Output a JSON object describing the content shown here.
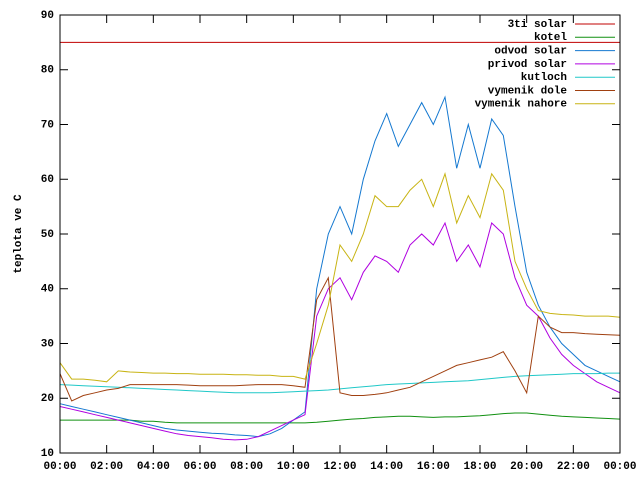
{
  "chart_data": {
    "type": "line",
    "ylabel": "teplota ve C",
    "x": [
      0,
      0.5,
      1,
      1.5,
      2,
      2.5,
      3,
      3.5,
      4,
      4.5,
      5,
      5.5,
      6,
      6.5,
      7,
      7.5,
      8,
      8.5,
      9,
      9.5,
      10,
      10.5,
      11,
      11.5,
      12,
      12.5,
      13,
      13.5,
      14,
      14.5,
      15,
      15.5,
      16,
      16.5,
      17,
      17.5,
      18,
      18.5,
      19,
      19.5,
      20,
      20.5,
      21,
      21.5,
      22,
      22.5,
      23,
      23.5,
      24
    ],
    "xlim": [
      0,
      24
    ],
    "xticks": [
      {
        "value": 0,
        "label": "00:00"
      },
      {
        "value": 2,
        "label": "02:00"
      },
      {
        "value": 4,
        "label": "04:00"
      },
      {
        "value": 6,
        "label": "06:00"
      },
      {
        "value": 8,
        "label": "08:00"
      },
      {
        "value": 10,
        "label": "10:00"
      },
      {
        "value": 12,
        "label": "12:00"
      },
      {
        "value": 14,
        "label": "14:00"
      },
      {
        "value": 16,
        "label": "16:00"
      },
      {
        "value": 18,
        "label": "18:00"
      },
      {
        "value": 20,
        "label": "20:00"
      },
      {
        "value": 22,
        "label": "22:00"
      },
      {
        "value": 24,
        "label": "00:00"
      }
    ],
    "ylim": [
      10,
      90
    ],
    "yticks": [
      10,
      20,
      30,
      40,
      50,
      60,
      70,
      80,
      90
    ],
    "legend": "top-right",
    "series": [
      {
        "name": "3ti solar",
        "color": "#c00000",
        "values": [
          85,
          85,
          85,
          85,
          85,
          85,
          85,
          85,
          85,
          85,
          85,
          85,
          85,
          85,
          85,
          85,
          85,
          85,
          85,
          85,
          85,
          85,
          85,
          85,
          85,
          85,
          85,
          85,
          85,
          85,
          85,
          85,
          85,
          85,
          85,
          85,
          85,
          85,
          85,
          85,
          85,
          85,
          85,
          85,
          85,
          85,
          85,
          85,
          85
        ]
      },
      {
        "name": "kotel",
        "color": "#109010",
        "values": [
          16,
          16,
          16,
          16,
          16,
          16,
          16,
          15.8,
          15.8,
          15.6,
          15.5,
          15.5,
          15.5,
          15.5,
          15.5,
          15.5,
          15.5,
          15.5,
          15.5,
          15.5,
          15.5,
          15.5,
          15.6,
          15.8,
          16,
          16.2,
          16.3,
          16.5,
          16.6,
          16.7,
          16.7,
          16.6,
          16.5,
          16.6,
          16.6,
          16.7,
          16.8,
          17,
          17.2,
          17.3,
          17.3,
          17.1,
          16.9,
          16.7,
          16.6,
          16.5,
          16.4,
          16.3,
          16.2
        ]
      },
      {
        "name": "odvod solar",
        "color": "#1478d0",
        "values": [
          19,
          18.5,
          18,
          17.5,
          17,
          16.5,
          16,
          15.5,
          15,
          14.5,
          14.2,
          14,
          13.8,
          13.6,
          13.5,
          13.3,
          13.2,
          13,
          13.5,
          14.5,
          16,
          17.5,
          40,
          50,
          55,
          50,
          60,
          67,
          72,
          66,
          70,
          74,
          70,
          75,
          62,
          70,
          62,
          71,
          68,
          55,
          43,
          37,
          33,
          30,
          28,
          26,
          25,
          24,
          23
        ]
      },
      {
        "name": "privod solar",
        "color": "#b000e0",
        "values": [
          18.5,
          18,
          17.5,
          17,
          16.5,
          16,
          15.5,
          15,
          14.5,
          14,
          13.5,
          13.2,
          13,
          12.8,
          12.5,
          12.4,
          12.5,
          13,
          14,
          15,
          16,
          17,
          35,
          40,
          42,
          38,
          43,
          46,
          45,
          43,
          48,
          50,
          48,
          52,
          45,
          48,
          44,
          52,
          50,
          42,
          37,
          35,
          31,
          28,
          26,
          24.5,
          23,
          22,
          21
        ]
      },
      {
        "name": "kutloch",
        "color": "#20c8c8",
        "values": [
          22.5,
          22.4,
          22.3,
          22.2,
          22.1,
          22,
          21.9,
          21.8,
          21.7,
          21.6,
          21.5,
          21.4,
          21.3,
          21.2,
          21.1,
          21,
          21,
          21,
          21,
          21.1,
          21.2,
          21.3,
          21.4,
          21.5,
          21.7,
          21.9,
          22.1,
          22.3,
          22.5,
          22.6,
          22.7,
          22.8,
          22.9,
          23,
          23.1,
          23.2,
          23.4,
          23.6,
          23.8,
          24,
          24.1,
          24.2,
          24.3,
          24.4,
          24.5,
          24.5,
          24.5,
          24.6,
          24.6
        ]
      },
      {
        "name": "vymenik dole",
        "color": "#a04010",
        "values": [
          24.5,
          19.5,
          20.5,
          21,
          21.5,
          21.8,
          22.5,
          22.5,
          22.5,
          22.5,
          22.5,
          22.4,
          22.3,
          22.3,
          22.3,
          22.3,
          22.4,
          22.5,
          22.5,
          22.5,
          22.3,
          22,
          38,
          42,
          21,
          20.5,
          20.5,
          20.7,
          21,
          21.5,
          22,
          23,
          24,
          25,
          26,
          26.5,
          27,
          27.5,
          28.5,
          25,
          21,
          35,
          33,
          32,
          32,
          31.8,
          31.7,
          31.6,
          31.5
        ]
      },
      {
        "name": "vymenik nahore",
        "color": "#c8b414",
        "values": [
          26.5,
          23.5,
          23.5,
          23.3,
          23,
          25,
          24.8,
          24.7,
          24.6,
          24.6,
          24.5,
          24.5,
          24.4,
          24.4,
          24.4,
          24.3,
          24.3,
          24.2,
          24.2,
          24,
          24,
          23.5,
          30,
          37,
          48,
          45,
          50,
          57,
          55,
          55,
          58,
          60,
          55,
          61,
          52,
          57,
          53,
          61,
          58,
          45,
          40,
          36,
          35.5,
          35.3,
          35.2,
          35,
          35,
          35,
          34.8
        ]
      }
    ]
  }
}
